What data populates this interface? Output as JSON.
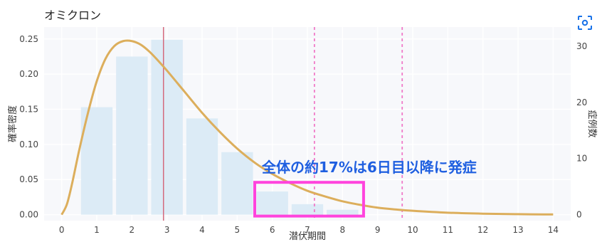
{
  "colors": {
    "plot_bg": "#f7f8fb",
    "bar": "#dcebf6",
    "curve": "#dcae5c",
    "median_line": "#d46a7e",
    "dashed_line": "#f07ac8",
    "annotation_text": "#1f5fe0",
    "highlight_box": "#ff44dd"
  },
  "chart_data": {
    "type": "bar",
    "title": "オミクロン",
    "xlabel": "潜伏期間",
    "ylabel": "確率密度",
    "y2label": "症例数",
    "xlim": [
      -0.5,
      14.5
    ],
    "ylim": [
      -0.0085,
      0.267
    ],
    "y2lim": [
      -1.06,
      33.4
    ],
    "x_ticks": [
      "0",
      "1",
      "2",
      "3",
      "4",
      "5",
      "6",
      "7",
      "8",
      "9",
      "10",
      "11",
      "12",
      "13",
      "14"
    ],
    "y_ticks": [
      "0.00",
      "0.05",
      "0.10",
      "0.15",
      "0.20",
      "0.25"
    ],
    "y2_ticks": [
      "0",
      "10",
      "20",
      "30"
    ],
    "grid": true,
    "bars": {
      "x": [
        1,
        2,
        3,
        4,
        5,
        6,
        7,
        8
      ],
      "values": [
        0.153,
        0.225,
        0.249,
        0.137,
        0.089,
        0.033,
        0.015,
        0.007
      ]
    },
    "curve": {
      "x": [
        0,
        0.15,
        0.3,
        0.5,
        0.75,
        1,
        1.25,
        1.5,
        1.75,
        2,
        2.25,
        2.5,
        2.75,
        3,
        3.5,
        4,
        4.5,
        5,
        5.5,
        6,
        6.5,
        7,
        7.5,
        8,
        8.5,
        9,
        9.5,
        10,
        11,
        12,
        13,
        14
      ],
      "y": [
        0,
        0.015,
        0.045,
        0.092,
        0.145,
        0.19,
        0.222,
        0.24,
        0.247,
        0.247,
        0.242,
        0.232,
        0.219,
        0.205,
        0.175,
        0.145,
        0.118,
        0.094,
        0.074,
        0.058,
        0.045,
        0.034,
        0.026,
        0.019,
        0.014,
        0.01,
        0.0075,
        0.0055,
        0.0028,
        0.0014,
        0.0007,
        0.0003
      ]
    },
    "vertical_lines": [
      {
        "x": 2.9,
        "style": "solid"
      },
      {
        "x": 7.2,
        "style": "dashed"
      },
      {
        "x": 9.7,
        "style": "dashed"
      }
    ],
    "annotation": {
      "text": "全体の約17%は6日目以降に発症",
      "highlight_x": [
        5.5,
        8.6
      ],
      "highlight_y": [
        -0.002,
        0.046
      ]
    }
  }
}
